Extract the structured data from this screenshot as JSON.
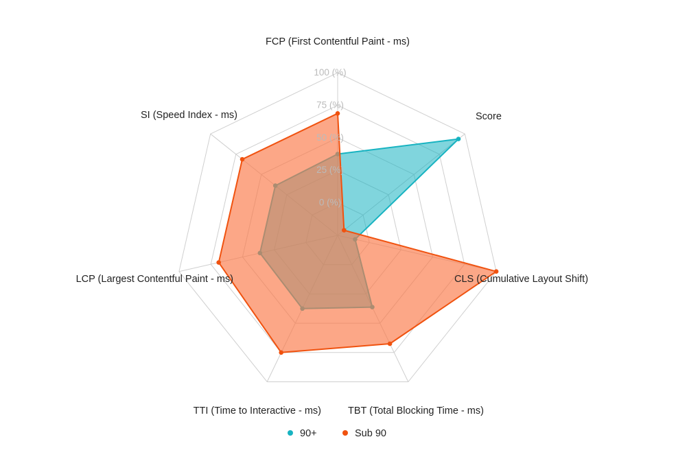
{
  "chart_data": {
    "type": "radar",
    "axes": [
      "FCP (First Contentful Paint - ms)",
      "Score",
      "CLS (Cumulative Layout Shift)",
      "TBT (Total Blocking Time - ms)",
      "TTI (Time to Interactive - ms)",
      "LCP (Largest Contentful Paint - ms)",
      "SI (Speed Index - ms)"
    ],
    "ticks": [
      "0 (%)",
      "25 (%)",
      "50 (%)",
      "75 (%)",
      "100 (%)"
    ],
    "range": [
      0,
      100
    ],
    "grid": true,
    "legend_position": "bottom",
    "series": [
      {
        "name": "90+",
        "color": "#17b3c1",
        "fill": "rgba(23,179,193,0.55)",
        "values": [
          50,
          95,
          11,
          49,
          50,
          49,
          49
        ]
      },
      {
        "name": "Sub 90",
        "color": "#f0520f",
        "fill": "rgba(250,120,70,0.65)",
        "values": [
          75,
          5,
          100,
          74,
          80,
          75,
          75
        ]
      }
    ]
  }
}
